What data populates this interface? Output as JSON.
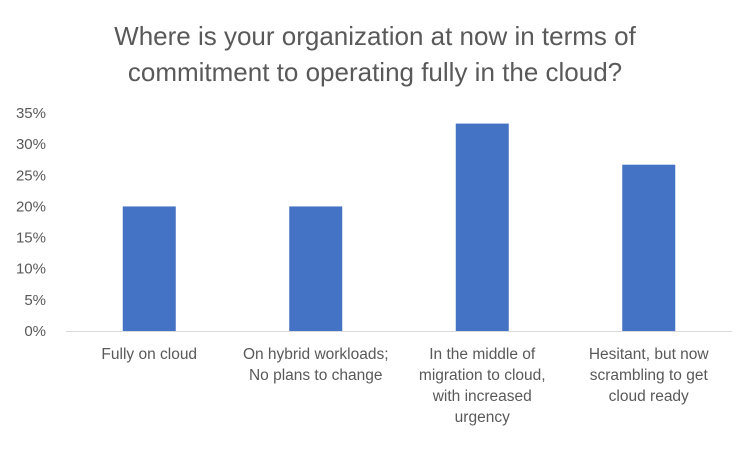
{
  "chart_data": {
    "type": "bar",
    "title_lines": [
      "Where is your organization at now in terms of",
      "commitment to operating fully in the cloud?"
    ],
    "categories": [
      [
        "Fully on cloud"
      ],
      [
        "On hybrid workloads;",
        "No plans to change"
      ],
      [
        "In the middle of",
        "migration to cloud,",
        "with increased",
        "urgency"
      ],
      [
        "Hesitant, but now",
        "scrambling to get",
        "cloud ready"
      ]
    ],
    "values": [
      20,
      20,
      33.3,
      26.7
    ],
    "ylim": [
      0,
      35
    ],
    "yticks": [
      "0%",
      "5%",
      "10%",
      "15%",
      "20%",
      "25%",
      "30%",
      "35%"
    ],
    "bar_color": "#4472C4",
    "axis_color": "#D9D9D9",
    "grid": false,
    "legend": "none"
  }
}
